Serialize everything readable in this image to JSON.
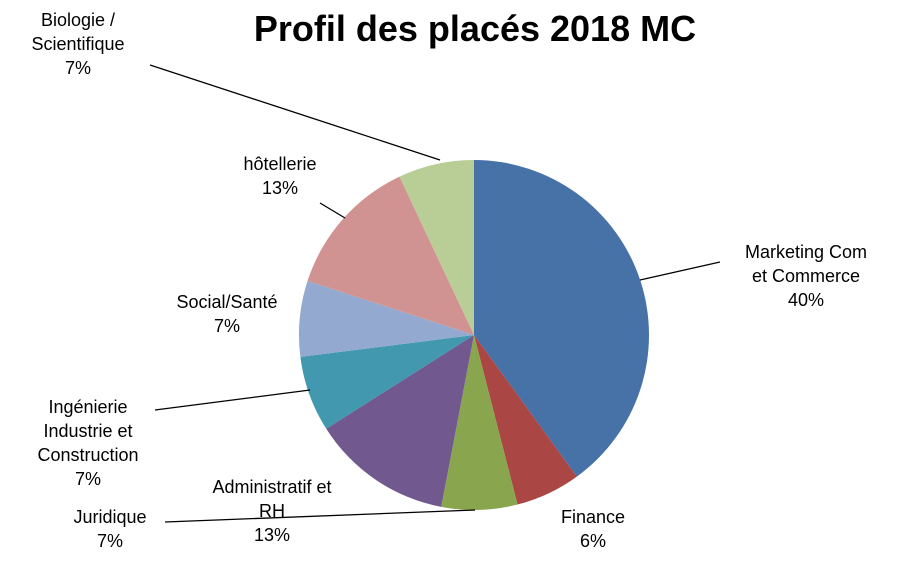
{
  "chart_data": {
    "type": "pie",
    "title": "Profil des placés 2018 MC",
    "categories": [
      "Marketing Com et Commerce",
      "Finance",
      "Juridique",
      "Administratif et RH",
      "Ingénierie Industrie et Construction",
      "Social/Santé",
      "hôtellerie",
      "Biologie / Scientifique"
    ],
    "values": [
      40,
      6,
      7,
      13,
      7,
      7,
      13,
      7
    ],
    "value_labels": [
      "40%",
      "6%",
      "7%",
      "13%",
      "7%",
      "7%",
      "13%",
      "7%"
    ],
    "colors": [
      "#4672a8",
      "#aa4643",
      "#89a54e",
      "#71588f",
      "#4198af",
      "#93a9cf",
      "#d19392",
      "#b9cd96"
    ]
  }
}
